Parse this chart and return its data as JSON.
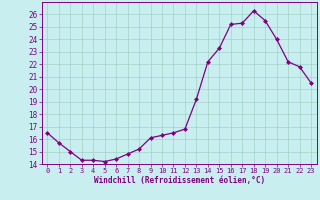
{
  "x": [
    0,
    1,
    2,
    3,
    4,
    5,
    6,
    7,
    8,
    9,
    10,
    11,
    12,
    13,
    14,
    15,
    16,
    17,
    18,
    19,
    20,
    21,
    22,
    23
  ],
  "y": [
    16.5,
    15.7,
    15.0,
    14.3,
    14.3,
    14.2,
    14.4,
    14.8,
    15.2,
    16.1,
    16.3,
    16.5,
    16.8,
    19.2,
    22.2,
    23.3,
    25.2,
    25.3,
    26.3,
    25.5,
    24.0,
    22.2,
    21.8,
    20.5
  ],
  "line_color": "#800080",
  "marker": "D",
  "markersize": 2.0,
  "linewidth": 0.9,
  "bg_color": "#c8eef0",
  "grid_color": "#99ccbb",
  "xlabel": "Windchill (Refroidissement éolien,°C)",
  "tick_color": "#800080",
  "ylim": [
    14,
    27
  ],
  "yticks": [
    14,
    15,
    16,
    17,
    18,
    19,
    20,
    21,
    22,
    23,
    24,
    25,
    26
  ],
  "xticks": [
    0,
    1,
    2,
    3,
    4,
    5,
    6,
    7,
    8,
    9,
    10,
    11,
    12,
    13,
    14,
    15,
    16,
    17,
    18,
    19,
    20,
    21,
    22,
    23
  ],
  "xlim": [
    -0.5,
    23.5
  ],
  "xlabel_fontsize": 5.5,
  "ytick_fontsize": 5.5,
  "xtick_fontsize": 5.0
}
